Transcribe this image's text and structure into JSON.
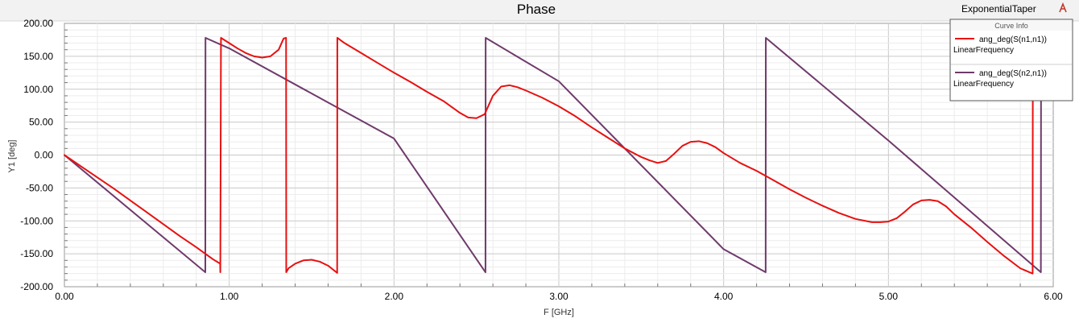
{
  "chart_data": {
    "type": "line",
    "title": "Phase",
    "design_name": "ExponentialTaper",
    "xlabel": "F [GHz]",
    "ylabel": "Y1 [deg]",
    "xlim": [
      0,
      6
    ],
    "ylim": [
      -200,
      200
    ],
    "xticks": [
      "0.00",
      "1.00",
      "2.00",
      "3.00",
      "4.00",
      "5.00",
      "6.00"
    ],
    "yticks": [
      "200.00",
      "150.00",
      "100.00",
      "50.00",
      "0.00",
      "-50.00",
      "-100.00",
      "-150.00",
      "-200.00"
    ],
    "grid": true,
    "legend_placement": "top-right",
    "legend_header": "Curve Info",
    "series": [
      {
        "name": "ang_deg(S(n1,n1))",
        "sub_label": "LinearFrequency",
        "color": "#e81010",
        "x": [
          0,
          0.1,
          0.2,
          0.3,
          0.4,
          0.5,
          0.6,
          0.7,
          0.8,
          0.9,
          0.945,
          0.946,
          0.95,
          1.0,
          1.05,
          1.1,
          1.15,
          1.2,
          1.25,
          1.3,
          1.33,
          1.345,
          1.346,
          1.36,
          1.4,
          1.45,
          1.5,
          1.55,
          1.6,
          1.65,
          1.655,
          1.656,
          1.7,
          1.8,
          1.9,
          2.0,
          2.1,
          2.2,
          2.3,
          2.4,
          2.45,
          2.5,
          2.55,
          2.6,
          2.65,
          2.7,
          2.75,
          2.8,
          2.9,
          3.0,
          3.1,
          3.2,
          3.3,
          3.4,
          3.5,
          3.55,
          3.6,
          3.65,
          3.7,
          3.75,
          3.8,
          3.85,
          3.9,
          3.95,
          4.0,
          4.1,
          4.2,
          4.3,
          4.4,
          4.5,
          4.6,
          4.7,
          4.8,
          4.9,
          4.95,
          5.0,
          5.05,
          5.1,
          5.15,
          5.2,
          5.25,
          5.3,
          5.35,
          5.4,
          5.5,
          5.6,
          5.7,
          5.8,
          5.875,
          5.876,
          5.88,
          5.9
        ],
        "y": [
          0,
          -17,
          -34,
          -51,
          -69,
          -87,
          -105,
          -123,
          -140,
          -158,
          -165,
          -178,
          178,
          170,
          162,
          155,
          150,
          148,
          150,
          160,
          177,
          178,
          -178,
          -172,
          -165,
          -160,
          -159,
          -162,
          -168,
          -178,
          -179,
          178,
          170,
          155,
          140,
          125,
          111,
          96,
          82,
          64,
          57,
          56,
          62,
          90,
          104,
          106,
          103,
          98,
          87,
          74,
          59,
          42,
          26,
          10,
          -3,
          -8,
          -12,
          -9,
          2,
          14,
          20,
          21,
          18,
          12,
          3,
          -12,
          -24,
          -38,
          -52,
          -65,
          -77,
          -88,
          -97,
          -102,
          -102,
          -101,
          -96,
          -86,
          -75,
          -69,
          -68,
          -70,
          -78,
          -90,
          -110,
          -132,
          -153,
          -172,
          -180,
          93,
          105,
          112
        ]
      },
      {
        "name": "ang_deg(S(n2,n1))",
        "sub_label": "LinearFrequency",
        "color": "#6f3a6b",
        "x": [
          0,
          0.855,
          0.856,
          1.0,
          2.0,
          2.555,
          2.556,
          3.0,
          4.0,
          4.255,
          4.256,
          5.0,
          5.925,
          5.926,
          5.95
        ],
        "y": [
          0,
          -178,
          178,
          162,
          25,
          -178,
          178,
          112,
          -143,
          -178,
          178,
          22,
          -178,
          90,
          98
        ]
      }
    ]
  }
}
